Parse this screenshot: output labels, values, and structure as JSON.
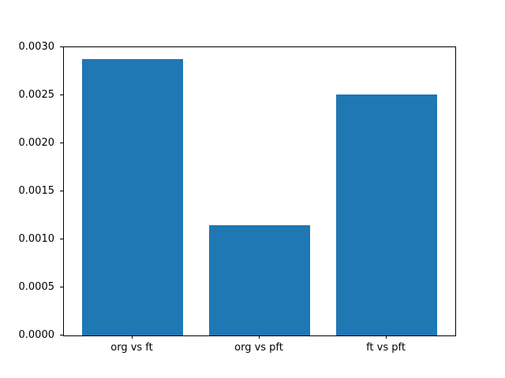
{
  "chart_data": {
    "type": "bar",
    "categories": [
      "org vs ft",
      "org vs pft",
      "ft vs pft"
    ],
    "values": [
      0.00288,
      0.00115,
      0.00251
    ],
    "title": "",
    "xlabel": "",
    "ylabel": "",
    "ylim": [
      0,
      0.003
    ],
    "yticks": [
      0,
      0.0005,
      0.001,
      0.0015,
      0.002,
      0.0025,
      0.003
    ],
    "ytick_labels": [
      "0.0000",
      "0.0005",
      "0.0010",
      "0.0015",
      "0.0020",
      "0.0025",
      "0.0030"
    ],
    "bar_color": "#1f77b4",
    "axis_color": "#000000",
    "text_color": "#000000",
    "background_color": "#ffffff",
    "grid": false,
    "legend": null
  }
}
